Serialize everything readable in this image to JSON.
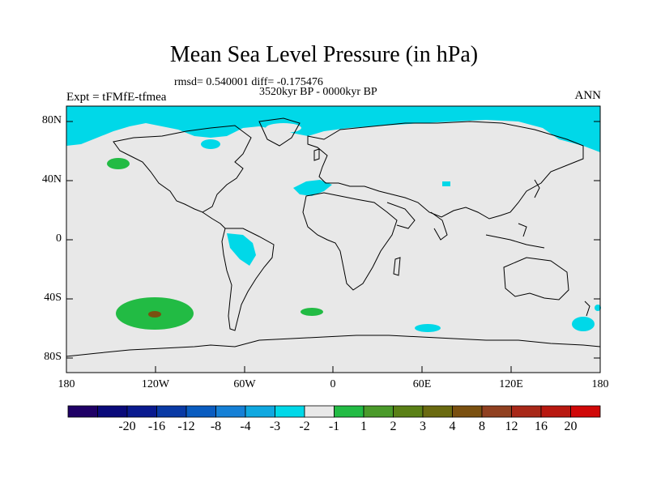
{
  "title": "Mean Sea Level Pressure (in hPa)",
  "stats_line": "rmsd= 0.540001 diff= -0.175476",
  "period_line": "3520kyr BP - 0000kyr BP",
  "experiment": "Expt = tFMfE-tfmea",
  "season": "ANN",
  "lat_labels": [
    "80N",
    "40N",
    "0",
    "40S",
    "80S"
  ],
  "lon_labels": [
    "180",
    "120W",
    "60W",
    "0",
    "60E",
    "120E",
    "180"
  ],
  "colorbar": {
    "colors": [
      "#1f0066",
      "#0a0a7a",
      "#0a1a8f",
      "#0a3aa5",
      "#0a5cc0",
      "#1580d6",
      "#10a8e0",
      "#00d8e8",
      "#e8e8e8",
      "#22bb44",
      "#4a9a2a",
      "#5a8016",
      "#6a6a10",
      "#7a5010",
      "#904020",
      "#a82818",
      "#b81810",
      "#d00808"
    ],
    "labels": [
      "-20",
      "-16",
      "-12",
      "-8",
      "-4",
      "-3",
      "-2",
      "-1",
      "1",
      "2",
      "3",
      "4",
      "8",
      "12",
      "16",
      "20"
    ]
  },
  "map_colors": {
    "background": "#e8e8e8",
    "cyan": "#00d8e8",
    "green": "#22bb44",
    "brown": "#7a5010",
    "coast": "#000000"
  }
}
